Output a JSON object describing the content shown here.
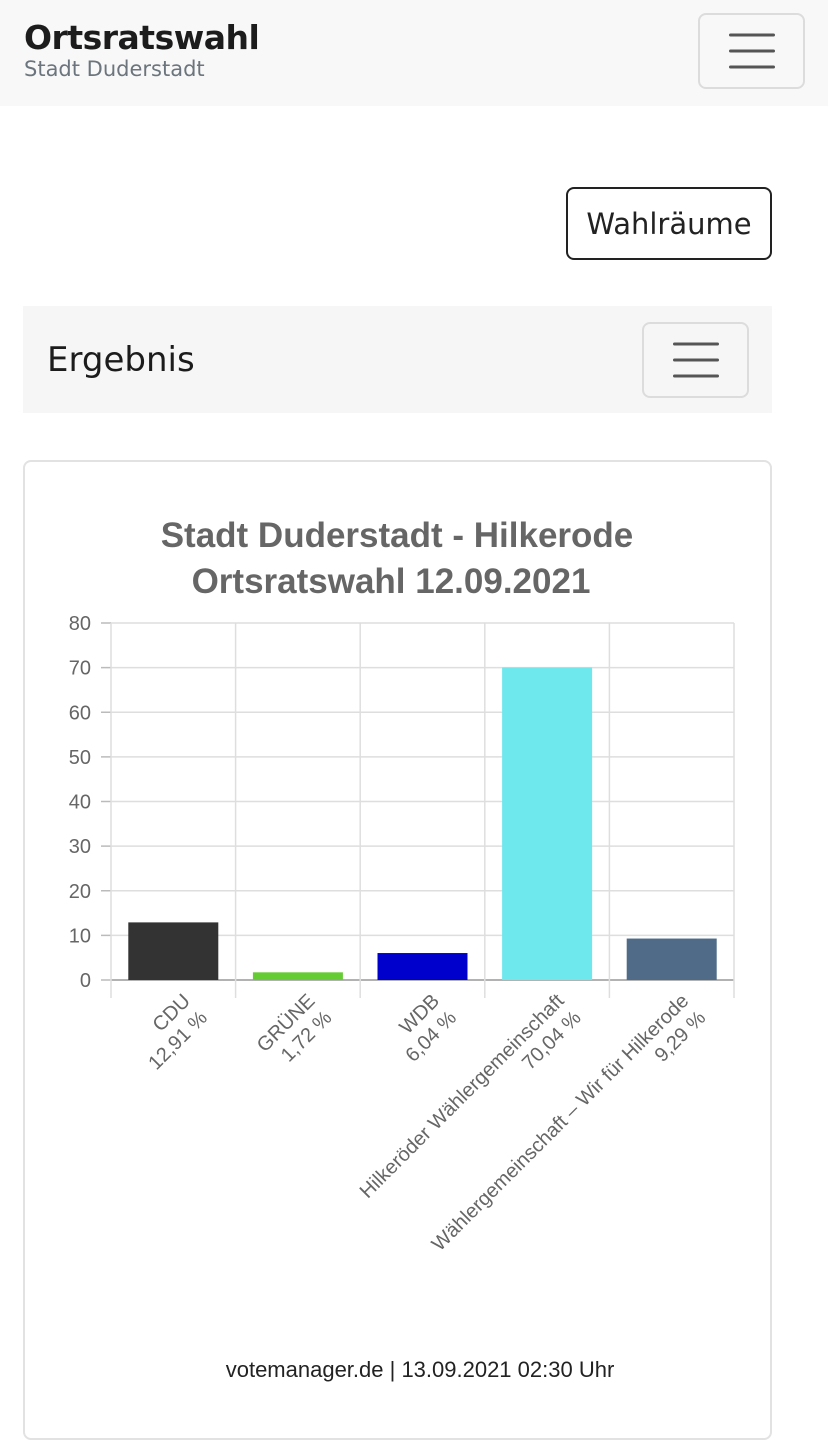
{
  "header": {
    "title": "Ortsratswahl",
    "subtitle": "Stadt Duderstadt",
    "menu_icon": "hamburger-icon"
  },
  "actions": {
    "wahlraeume_label": "Wahlräume"
  },
  "result_nav": {
    "title": "Ergebnis",
    "menu_icon": "hamburger-icon"
  },
  "chart_data": {
    "type": "bar",
    "title": "Stadt Duderstadt - Hilkerode",
    "subtitle": "Ortsratswahl 12.09.2021",
    "categories": [
      "CDU",
      "GRÜNE",
      "WDB",
      "Hilkeröder Wählergemeinschaft",
      "Wählergemeinschaft – Wir für Hilkerode"
    ],
    "value_labels": [
      "12,91 %",
      "1,72 %",
      "6,04 %",
      "70,04 %",
      "9,29 %"
    ],
    "values": [
      12.91,
      1.72,
      6.04,
      70.04,
      9.29
    ],
    "colors": [
      "#333333",
      "#66cc33",
      "#0000cc",
      "#6ee8ec",
      "#4f6b88"
    ],
    "yticks": [
      0,
      10,
      20,
      30,
      40,
      50,
      60,
      70,
      80
    ],
    "ylim": [
      0,
      80
    ],
    "grid": true,
    "legend": "none",
    "footer": "votemanager.de | 13.09.2021 02:30 Uhr"
  }
}
